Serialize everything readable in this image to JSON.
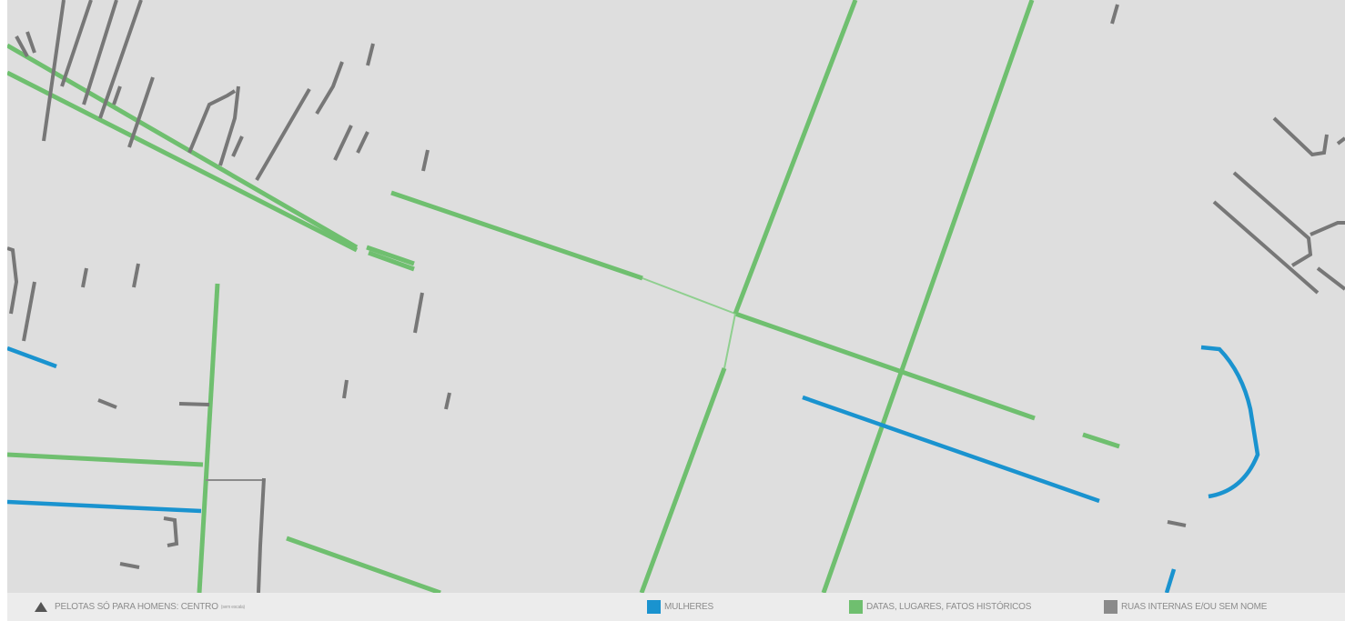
{
  "map": {
    "title": "PELOTAS SÓ PARA HOMENS: CENTRO",
    "title_note": "(sem escala)",
    "colors": {
      "background": "#dedede",
      "mulheres": "#1a93cf",
      "datas": "#6fbf6f",
      "ruas": "#777777"
    }
  },
  "legend": {
    "icon": "warning-triangle-icon",
    "items": [
      {
        "label": "MULHERES",
        "color": "#1a93cf"
      },
      {
        "label": "DATAS, LUGARES, FATOS HISTÓRICOS",
        "color": "#6fbf6f"
      },
      {
        "label": "RUAS INTERNAS E/OU SEM NOME",
        "color": "#777777"
      }
    ]
  }
}
